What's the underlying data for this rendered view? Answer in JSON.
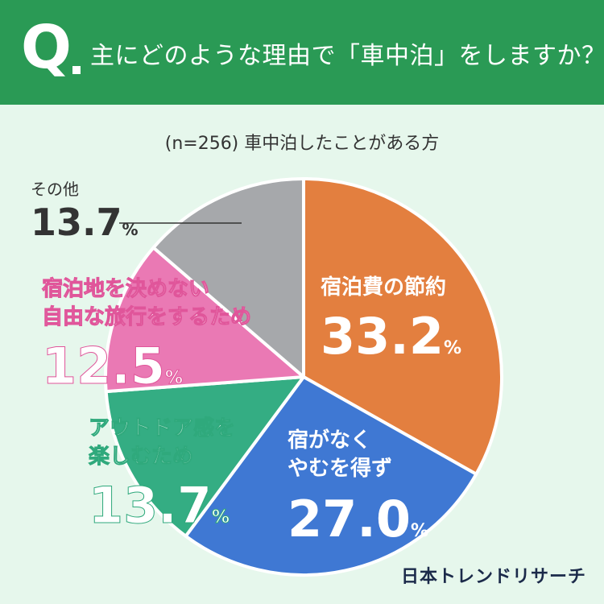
{
  "header": {
    "q_mark": "Q",
    "question": "主にどのような理由で「車中泊」をしますか？"
  },
  "sample_note": "(n=256) 車中泊したことがある方",
  "brand": "日本トレンドリサーチ",
  "chart_data": {
    "type": "pie",
    "title": "主にどのような理由で「車中泊」をしますか？",
    "subtitle": "(n=256) 車中泊したことがある方",
    "unit": "%",
    "slices": [
      {
        "name": "宿泊費の節約",
        "name_lines": [
          "宿泊費の節約"
        ],
        "value": 33.2,
        "value_label": "33.2",
        "color": "#e37f3f"
      },
      {
        "name": "宿がなくやむを得ず",
        "name_lines": [
          "宿がなく",
          "やむを得ず"
        ],
        "value": 27.0,
        "value_label": "27.0",
        "color": "#3f78d3"
      },
      {
        "name": "アウトドア感を楽しむため",
        "name_lines": [
          "アウトドア感を",
          "楽しむため"
        ],
        "value": 13.7,
        "value_label": "13.7",
        "color": "#34ad83"
      },
      {
        "name": "宿泊地を決めない自由な旅行をするため",
        "name_lines": [
          "宿泊地を決めない",
          "自由な旅行をするため"
        ],
        "value": 12.5,
        "value_label": "12.5",
        "color": "#ea79b4"
      },
      {
        "name": "その他",
        "name_lines": [
          "その他"
        ],
        "value": 13.7,
        "value_label": "13.7",
        "color": "#a6a8ab"
      }
    ]
  }
}
